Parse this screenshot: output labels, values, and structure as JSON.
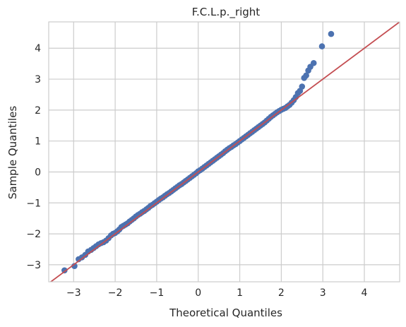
{
  "chart_data": {
    "type": "scatter",
    "title": "F.C.L.p._right",
    "xlabel": "Theoretical Quantiles",
    "ylabel": "Sample Quantiles",
    "xlim": [
      -3.6,
      4.85
    ],
    "ylim": [
      -3.55,
      4.85
    ],
    "xticks": [
      -3,
      -2,
      -1,
      0,
      1,
      2,
      3,
      4
    ],
    "yticks": [
      -3,
      -2,
      -1,
      0,
      1,
      2,
      3,
      4
    ],
    "xtick_labels": [
      "−3",
      "−2",
      "−1",
      "0",
      "1",
      "2",
      "3",
      "4"
    ],
    "ytick_labels": [
      "−3",
      "−2",
      "−1",
      "0",
      "1",
      "2",
      "3",
      "4"
    ],
    "grid": true,
    "series": [
      {
        "kind": "points",
        "color": "#4c72b0",
        "x": [
          -3.22,
          -2.98,
          -2.88,
          -2.8,
          -2.72,
          -2.65,
          -2.58,
          -2.52,
          -2.46,
          -2.4,
          -2.34,
          -2.28,
          -2.22,
          -2.16,
          -2.1,
          -2.05,
          -2.0,
          -1.95,
          -1.9,
          -1.85,
          -1.8,
          -1.75,
          -1.7,
          -1.65,
          -1.6,
          -1.55,
          -1.5,
          -1.45,
          -1.4,
          -1.35,
          -1.3,
          -1.25,
          -1.2,
          -1.15,
          -1.1,
          -1.05,
          -1.0,
          -0.95,
          -0.9,
          -0.85,
          -0.8,
          -0.75,
          -0.7,
          -0.65,
          -0.6,
          -0.55,
          -0.5,
          -0.45,
          -0.4,
          -0.35,
          -0.3,
          -0.25,
          -0.2,
          -0.15,
          -0.1,
          -0.05,
          0.0,
          0.05,
          0.1,
          0.15,
          0.2,
          0.25,
          0.3,
          0.35,
          0.4,
          0.45,
          0.5,
          0.55,
          0.6,
          0.65,
          0.7,
          0.75,
          0.8,
          0.85,
          0.9,
          0.95,
          1.0,
          1.05,
          1.1,
          1.15,
          1.2,
          1.25,
          1.3,
          1.35,
          1.4,
          1.45,
          1.5,
          1.55,
          1.6,
          1.65,
          1.7,
          1.75,
          1.8,
          1.85,
          1.9,
          1.95,
          2.0,
          2.05,
          2.1,
          2.15,
          2.2,
          2.25,
          2.3,
          2.35,
          2.4,
          2.45,
          2.5,
          2.55,
          2.6,
          2.65,
          2.7,
          2.78,
          2.98,
          3.2
        ],
        "y": [
          -3.18,
          -3.04,
          -2.82,
          -2.76,
          -2.68,
          -2.57,
          -2.52,
          -2.46,
          -2.4,
          -2.34,
          -2.3,
          -2.27,
          -2.22,
          -2.14,
          -2.05,
          -2.0,
          -1.97,
          -1.92,
          -1.86,
          -1.78,
          -1.74,
          -1.7,
          -1.66,
          -1.6,
          -1.55,
          -1.5,
          -1.44,
          -1.39,
          -1.35,
          -1.3,
          -1.26,
          -1.21,
          -1.16,
          -1.1,
          -1.06,
          -1.01,
          -0.96,
          -0.91,
          -0.86,
          -0.82,
          -0.77,
          -0.72,
          -0.68,
          -0.63,
          -0.58,
          -0.53,
          -0.48,
          -0.43,
          -0.39,
          -0.34,
          -0.29,
          -0.24,
          -0.19,
          -0.14,
          -0.09,
          -0.04,
          0.02,
          0.06,
          0.11,
          0.16,
          0.21,
          0.26,
          0.31,
          0.36,
          0.41,
          0.46,
          0.51,
          0.56,
          0.61,
          0.67,
          0.72,
          0.77,
          0.81,
          0.86,
          0.9,
          0.95,
          1.0,
          1.05,
          1.1,
          1.15,
          1.2,
          1.25,
          1.3,
          1.35,
          1.4,
          1.45,
          1.5,
          1.55,
          1.6,
          1.66,
          1.72,
          1.78,
          1.83,
          1.88,
          1.93,
          1.97,
          2.01,
          2.04,
          2.07,
          2.12,
          2.17,
          2.24,
          2.32,
          2.42,
          2.55,
          2.62,
          2.76,
          3.04,
          3.12,
          3.28,
          3.4,
          3.52,
          4.06,
          4.46
        ]
      },
      {
        "kind": "reference-line",
        "color": "#c44e52",
        "slope": 1,
        "intercept": 0
      }
    ]
  }
}
